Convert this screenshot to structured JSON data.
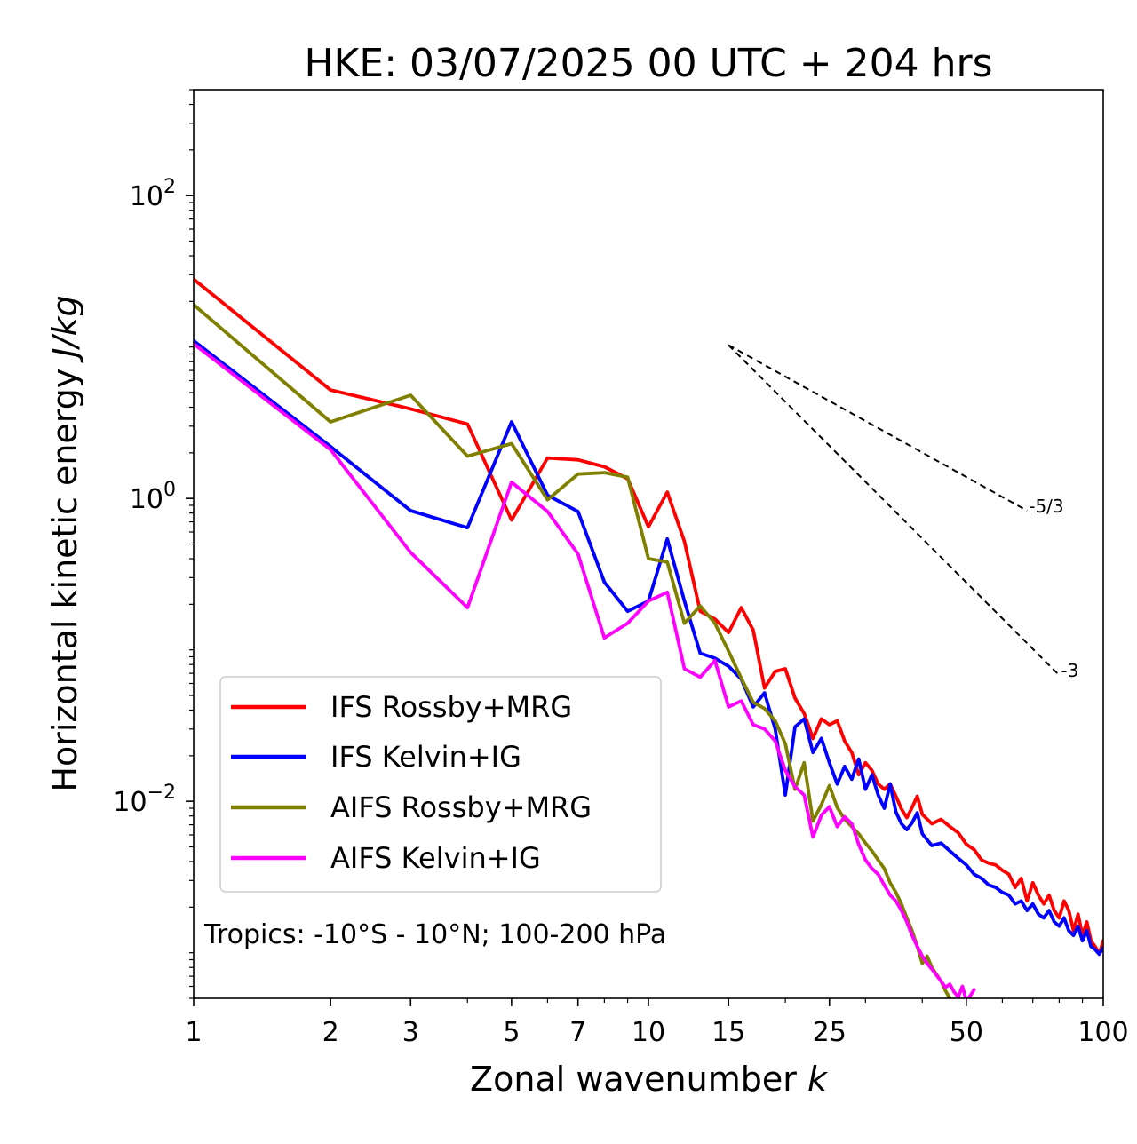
{
  "chart_data": {
    "type": "line",
    "title": "HKE: 03/07/2025 00 UTC + 204 hrs",
    "xlabel": "Zonal wavenumber k",
    "xlabel_main": "Zonal wavenumber ",
    "xlabel_var": "k",
    "ylabel_main": "Horizontal kinetic energy ",
    "ylabel_unit": "J/kg",
    "xscale": "log",
    "yscale": "log",
    "xlim": [
      1,
      100
    ],
    "ylim": [
      0.0005,
      500
    ],
    "x_ticks": [
      1,
      2,
      3,
      5,
      7,
      10,
      15,
      25,
      50,
      100
    ],
    "x_tick_labels": [
      "1",
      "2",
      "3",
      "5",
      "7",
      "10",
      "15",
      "25",
      "50",
      "100"
    ],
    "y_ticks": [
      0.01,
      1,
      100
    ],
    "y_tick_labels": [
      {
        "base": "10",
        "exp": "−2"
      },
      {
        "base": "10",
        "exp": "0"
      },
      {
        "base": "10",
        "exp": "2"
      }
    ],
    "legend_position": "lower-left",
    "annotation": "Tropics: -10°S - 10°N; 100-200 hPa",
    "reference_lines": [
      {
        "label": "-5/3",
        "slope": -1.6667,
        "x": [
          15,
          68
        ],
        "y": [
          10.3,
          0.83
        ],
        "style": "dashed",
        "color": "#000000"
      },
      {
        "label": "-3",
        "slope": -3,
        "x": [
          15,
          80
        ],
        "y": [
          10.3,
          0.068
        ],
        "style": "dashed",
        "color": "#000000"
      }
    ],
    "series": [
      {
        "name": "IFS Rossby+MRG",
        "color": "#ff0000",
        "x": [
          1,
          2,
          3,
          4,
          5,
          6,
          7,
          8,
          9,
          10,
          11,
          12,
          13,
          14,
          15,
          16,
          17,
          18,
          19,
          20,
          21,
          22,
          23,
          24,
          25,
          26,
          27,
          28,
          29,
          30,
          31,
          32,
          33,
          34,
          35,
          36,
          37,
          38,
          39,
          40,
          42,
          44,
          46,
          48,
          50,
          52,
          54,
          56,
          58,
          60,
          62,
          64,
          66,
          68,
          70,
          72,
          74,
          76,
          78,
          80,
          82,
          84,
          86,
          88,
          90,
          92,
          94,
          96,
          98,
          100
        ],
        "y": [
          28,
          5.2,
          3.9,
          3.1,
          0.72,
          1.85,
          1.8,
          1.62,
          1.35,
          0.65,
          1.1,
          0.52,
          0.18,
          0.16,
          0.13,
          0.19,
          0.135,
          0.056,
          0.072,
          0.075,
          0.048,
          0.038,
          0.026,
          0.035,
          0.032,
          0.034,
          0.025,
          0.021,
          0.015,
          0.018,
          0.016,
          0.013,
          0.012,
          0.013,
          0.0108,
          0.0089,
          0.0078,
          0.0091,
          0.0108,
          0.0082,
          0.0071,
          0.0076,
          0.0068,
          0.0062,
          0.0052,
          0.0048,
          0.0041,
          0.0039,
          0.0038,
          0.0035,
          0.0033,
          0.0027,
          0.0031,
          0.0022,
          0.0029,
          0.0024,
          0.0021,
          0.0024,
          0.0019,
          0.0017,
          0.0022,
          0.0019,
          0.0014,
          0.0018,
          0.0013,
          0.0016,
          0.0012,
          0.0011,
          0.00098,
          0.0012
        ]
      },
      {
        "name": "IFS Kelvin+IG",
        "color": "#0000ff",
        "x": [
          1,
          2,
          3,
          4,
          5,
          6,
          7,
          8,
          9,
          10,
          11,
          12,
          13,
          14,
          15,
          16,
          17,
          18,
          19,
          20,
          21,
          22,
          23,
          24,
          25,
          26,
          27,
          28,
          29,
          30,
          31,
          32,
          33,
          34,
          35,
          36,
          37,
          38,
          39,
          40,
          42,
          44,
          46,
          48,
          50,
          52,
          54,
          56,
          58,
          60,
          62,
          64,
          66,
          68,
          70,
          72,
          74,
          76,
          78,
          80,
          82,
          84,
          86,
          88,
          90,
          92,
          94,
          96,
          98,
          100
        ],
        "y": [
          11,
          2.2,
          0.83,
          0.64,
          3.2,
          1.05,
          0.82,
          0.28,
          0.18,
          0.21,
          0.54,
          0.21,
          0.095,
          0.088,
          0.078,
          0.064,
          0.042,
          0.052,
          0.03,
          0.011,
          0.031,
          0.035,
          0.021,
          0.026,
          0.018,
          0.013,
          0.017,
          0.014,
          0.019,
          0.012,
          0.015,
          0.011,
          0.009,
          0.013,
          0.0085,
          0.0071,
          0.0065,
          0.0072,
          0.0084,
          0.0061,
          0.0051,
          0.0053,
          0.0047,
          0.0042,
          0.0038,
          0.0033,
          0.0031,
          0.0028,
          0.0027,
          0.0025,
          0.0024,
          0.0021,
          0.0022,
          0.0019,
          0.0021,
          0.0018,
          0.0017,
          0.0019,
          0.0016,
          0.0015,
          0.0017,
          0.0014,
          0.0013,
          0.0015,
          0.0012,
          0.0014,
          0.0011,
          0.00105,
          0.00098,
          0.00108
        ]
      },
      {
        "name": "AIFS Rossby+MRG",
        "color": "#808000",
        "x": [
          1,
          2,
          3,
          4,
          5,
          6,
          7,
          8,
          9,
          10,
          11,
          12,
          13,
          14,
          15,
          16,
          17,
          18,
          19,
          20,
          21,
          22,
          23,
          24,
          25,
          26,
          27,
          28,
          29,
          30,
          31,
          32,
          33,
          34,
          35,
          36,
          37,
          38,
          39,
          40,
          41,
          42,
          43,
          44,
          45,
          46
        ],
        "y": [
          19,
          3.2,
          4.8,
          1.9,
          2.3,
          0.98,
          1.45,
          1.48,
          1.38,
          0.4,
          0.38,
          0.15,
          0.195,
          0.15,
          0.098,
          0.065,
          0.045,
          0.041,
          0.034,
          0.024,
          0.012,
          0.018,
          0.0074,
          0.0095,
          0.0127,
          0.0091,
          0.0076,
          0.0068,
          0.0061,
          0.0053,
          0.0047,
          0.0041,
          0.0036,
          0.0029,
          0.0025,
          0.0021,
          0.0017,
          0.0014,
          0.0011,
          0.00085,
          0.00095,
          0.0008,
          0.00072,
          0.00065,
          0.00056,
          0.0005
        ]
      },
      {
        "name": "AIFS Kelvin+IG",
        "color": "#ff00ff",
        "x": [
          1,
          2,
          3,
          4,
          5,
          6,
          7,
          8,
          9,
          10,
          11,
          12,
          13,
          14,
          15,
          16,
          17,
          18,
          19,
          20,
          21,
          22,
          23,
          24,
          25,
          26,
          27,
          28,
          29,
          30,
          31,
          32,
          33,
          34,
          35,
          36,
          37,
          38,
          39,
          40,
          41,
          42,
          43,
          44,
          45,
          46,
          47,
          48,
          49,
          50,
          51,
          52
        ],
        "y": [
          10.5,
          2.1,
          0.44,
          0.19,
          1.28,
          0.82,
          0.43,
          0.12,
          0.15,
          0.21,
          0.24,
          0.075,
          0.066,
          0.085,
          0.042,
          0.046,
          0.032,
          0.03,
          0.025,
          0.016,
          0.0125,
          0.011,
          0.0058,
          0.0081,
          0.0092,
          0.0068,
          0.0079,
          0.0071,
          0.0052,
          0.0041,
          0.0036,
          0.0033,
          0.0028,
          0.0024,
          0.0022,
          0.0019,
          0.0016,
          0.0013,
          0.0011,
          0.00095,
          0.00085,
          0.00078,
          0.00071,
          0.00065,
          0.00059,
          0.00062,
          0.00055,
          0.00051,
          0.0006,
          0.00048,
          0.00052,
          0.00057
        ]
      }
    ]
  }
}
